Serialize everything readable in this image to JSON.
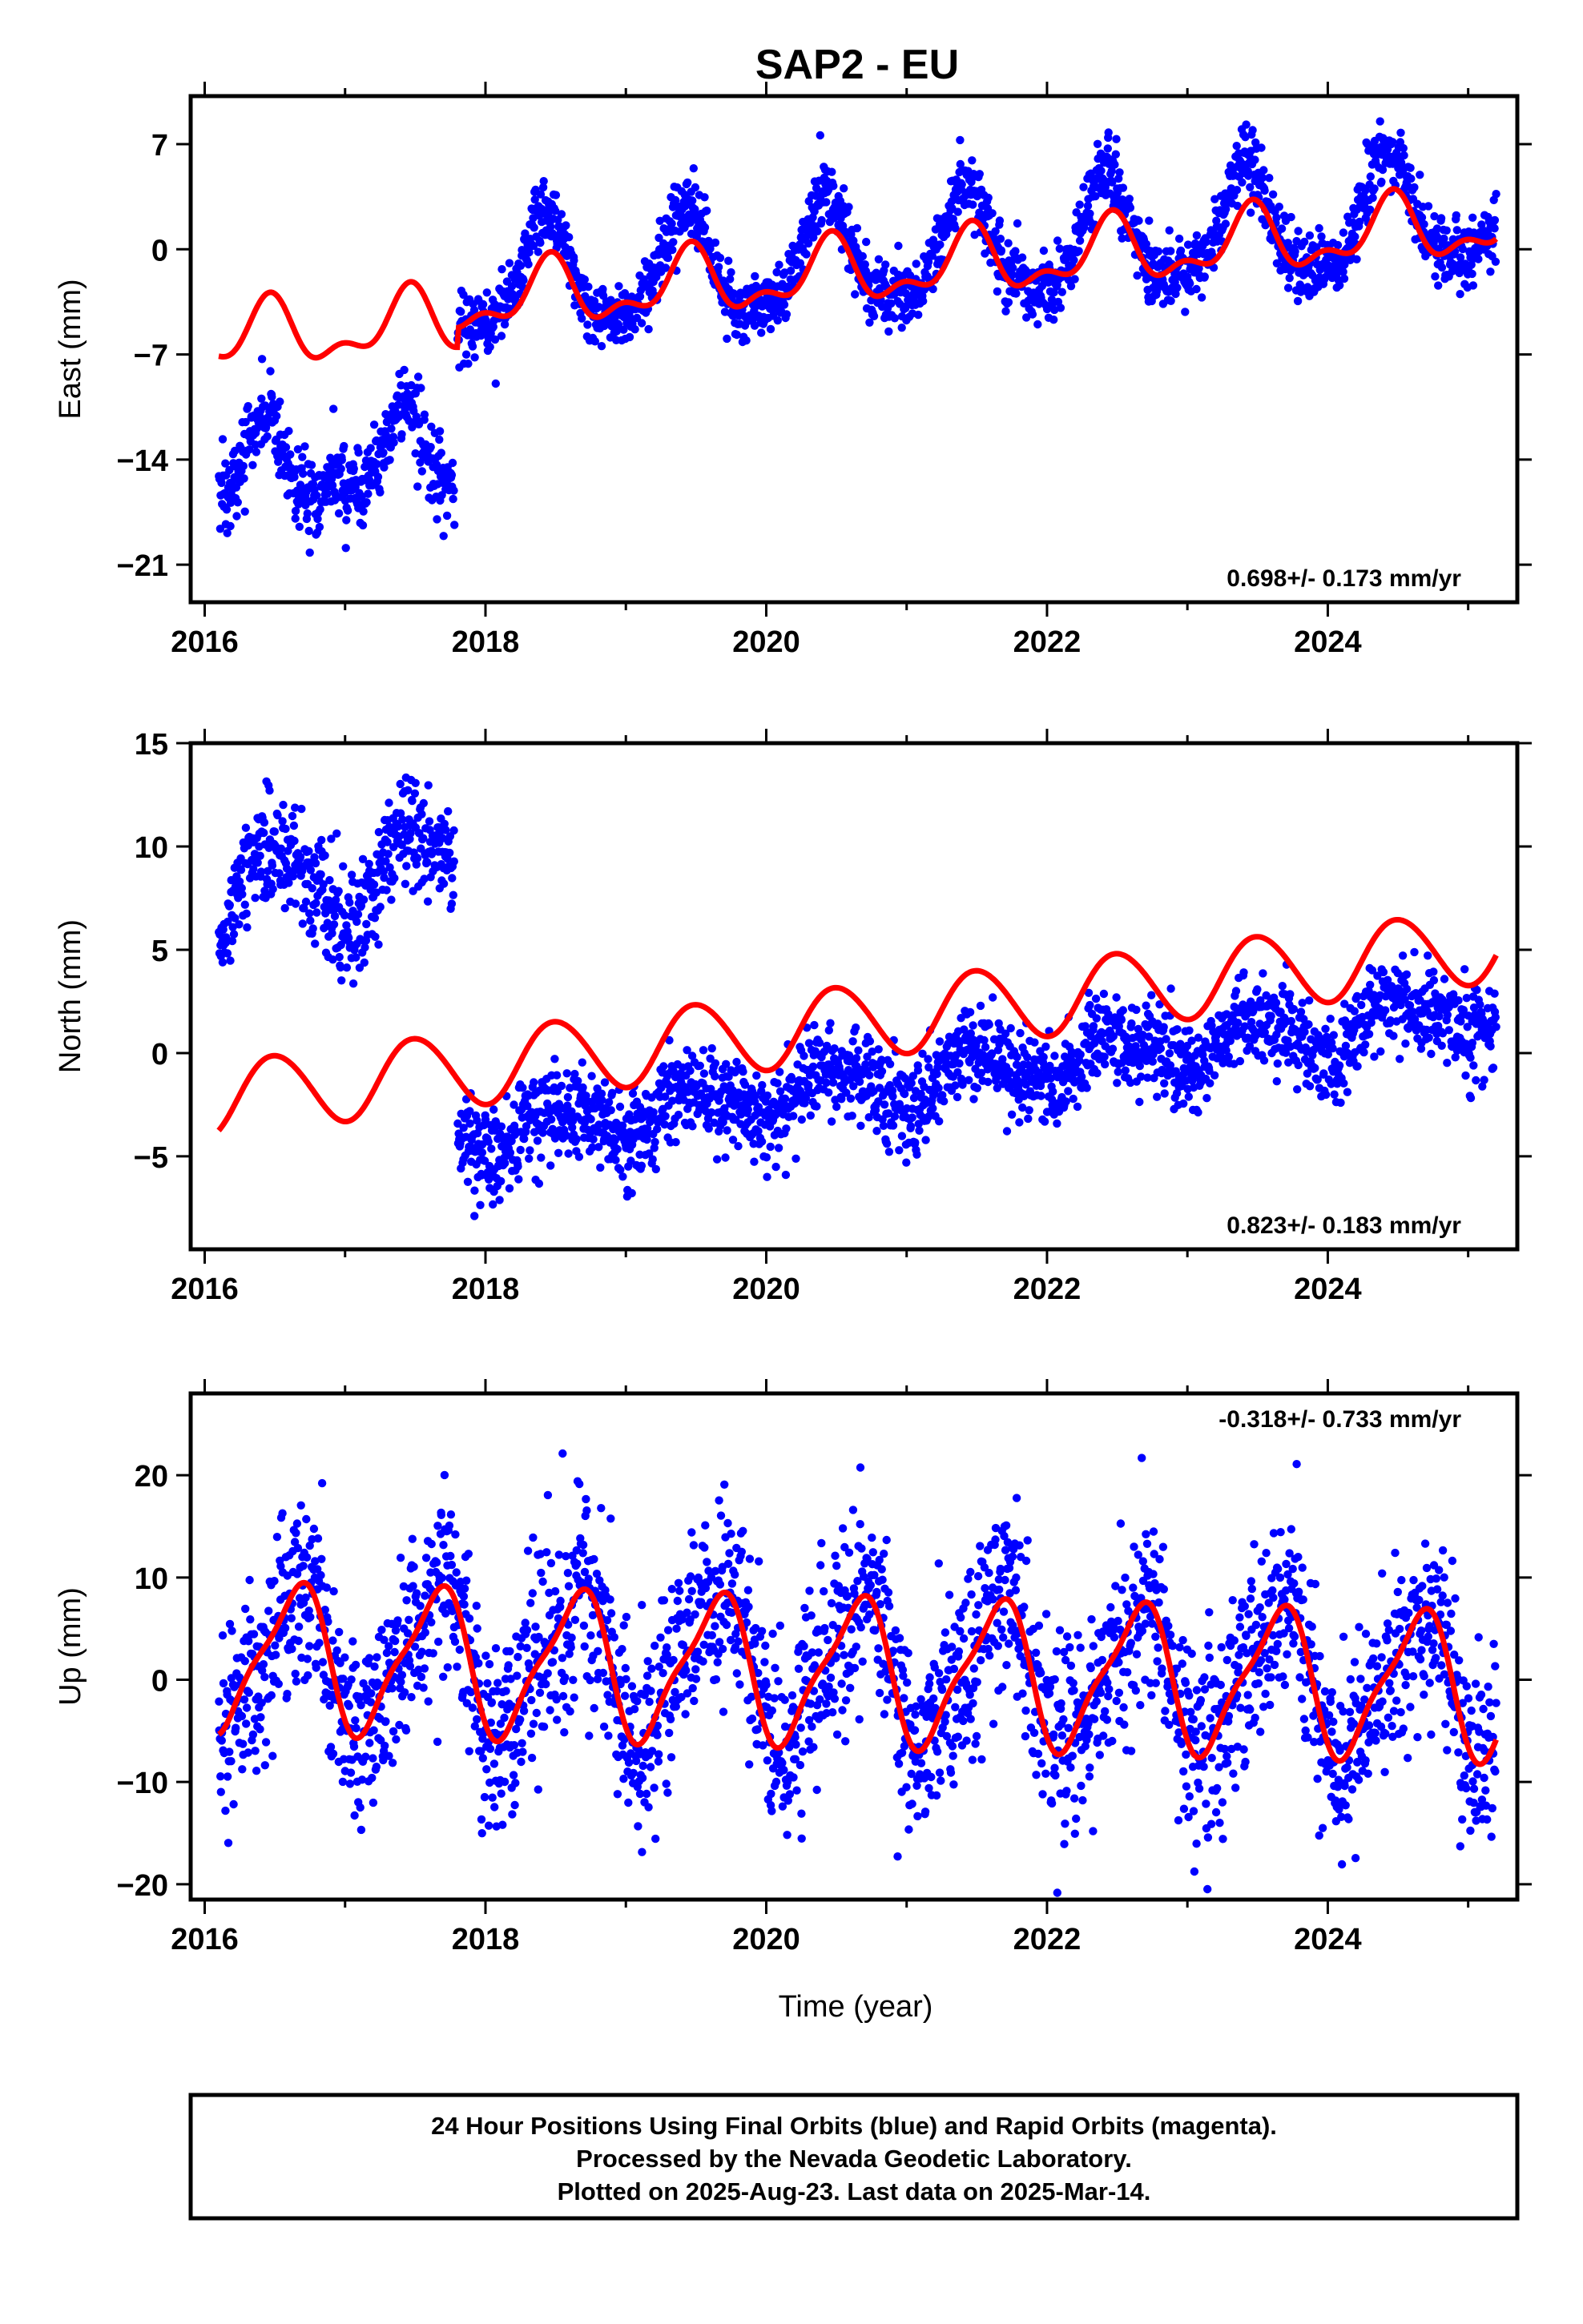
{
  "title": "SAP2 - EU",
  "xlabel": "Time (year)",
  "footer": {
    "line1": "24 Hour Positions Using Final Orbits (blue) and Rapid Orbits (magenta).",
    "line2": "Processed by the Nevada Geodetic Laboratory.",
    "line3": "Plotted on 2025-Aug-23. Last data on 2025-Mar-14."
  },
  "colors": {
    "data": "#0000ff",
    "model": "#ff0000",
    "frame": "#000000"
  },
  "chart_data": [
    {
      "type": "scatter",
      "component": "east",
      "ylabel": "East (mm)",
      "rate_text": "0.698+/- 0.173 mm/yr",
      "xlim": [
        2015.9,
        2025.35
      ],
      "ylim": [
        -23.5,
        10.2
      ],
      "xticks": [
        2016,
        2018,
        2020,
        2022,
        2024
      ],
      "yticks": [
        7,
        0,
        -7,
        -14,
        -21
      ],
      "ytick_labels": [
        "7",
        "0",
        "−7",
        "−14",
        "−21"
      ],
      "segments": [
        {
          "start": 2016.1,
          "end": 2017.78,
          "offset": -15.0,
          "rate": 0.698,
          "amp1": 2.2,
          "phase1": 0.42,
          "amp2": 1.2,
          "phase2": 0.3,
          "noise": 1.4
        },
        {
          "start": 2017.8,
          "end": 2025.2,
          "offset": -2.6,
          "rate": 0.698,
          "amp1": 3.6,
          "phase1": 0.42,
          "amp2": 0.9,
          "phase2": 0.3,
          "noise": 1.1
        }
      ],
      "model": {
        "start": 2016.1,
        "end": 2025.2,
        "ref_epoch": 2016.1,
        "offset": -6.0,
        "rate": 0.698,
        "amp1": 1.9,
        "phase1": 0.45,
        "amp2": 1.0,
        "phase2": 0.35,
        "offsets": [
          {
            "epoch": 2017.8,
            "step": 1.3
          }
        ]
      }
    },
    {
      "type": "scatter",
      "component": "north",
      "ylabel": "North (mm)",
      "rate_text": "0.823+/- 0.183 mm/yr",
      "xlim": [
        2015.9,
        2025.35
      ],
      "ylim": [
        -9.5,
        15.0
      ],
      "xticks": [
        2016,
        2018,
        2020,
        2022,
        2024
      ],
      "yticks": [
        15,
        10,
        5,
        0,
        -5
      ],
      "ytick_labels": [
        "15",
        "10",
        "5",
        "0",
        "−5"
      ],
      "segments": [
        {
          "start": 2016.1,
          "end": 2017.78,
          "offset": 7.6,
          "rate": 0.823,
          "amp1": 2.2,
          "phase1": 0.5,
          "amp2": 0.5,
          "phase2": 0.2,
          "noise": 1.3
        },
        {
          "start": 2017.8,
          "end": 2025.2,
          "offset": -4.0,
          "rate": 0.823,
          "amp1": 1.0,
          "phase1": 0.5,
          "amp2": 0.3,
          "phase2": 0.2,
          "noise": 1.1
        }
      ],
      "model": {
        "start": 2016.1,
        "end": 2025.2,
        "ref_epoch": 2016.1,
        "offset": -2.2,
        "rate": 0.823,
        "amp1": 1.8,
        "phase1": 0.5,
        "amp2": 0.1,
        "phase2": 0.2,
        "offsets": []
      }
    },
    {
      "type": "scatter",
      "component": "up",
      "ylabel": "Up (mm)",
      "rate_text": "-0.318+/- 0.733 mm/yr",
      "xlim": [
        2015.9,
        2025.35
      ],
      "ylim": [
        -21.5,
        28.0
      ],
      "xticks": [
        2016,
        2018,
        2020,
        2022,
        2024
      ],
      "yticks": [
        20,
        10,
        0,
        -10,
        -20
      ],
      "ytick_labels": [
        "20",
        "10",
        "0",
        "−10",
        "−20"
      ],
      "segments": [
        {
          "start": 2016.1,
          "end": 2025.2,
          "offset": 2.3,
          "rate": -0.318,
          "amp1": 6.8,
          "phase1": 0.64,
          "amp2": 1.8,
          "phase2": 0.15,
          "noise": 4.8
        }
      ],
      "model": {
        "start": 2016.1,
        "end": 2025.2,
        "ref_epoch": 2016.1,
        "offset": 2.3,
        "rate": -0.318,
        "amp1": 6.8,
        "phase1": 0.64,
        "amp2": 1.8,
        "phase2": 0.15,
        "offsets": []
      }
    }
  ]
}
